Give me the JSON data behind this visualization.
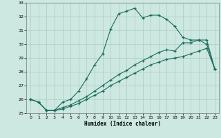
{
  "xlabel": "Humidex (Indice chaleur)",
  "bg_color": "#cce8e0",
  "grid_color": "#aaccc4",
  "line_color": "#1a6b5a",
  "xlim": [
    -0.5,
    23.5
  ],
  "ylim": [
    25,
    33
  ],
  "yticks": [
    25,
    26,
    27,
    28,
    29,
    30,
    31,
    32,
    33
  ],
  "xticks": [
    0,
    1,
    2,
    3,
    4,
    5,
    6,
    7,
    8,
    9,
    10,
    11,
    12,
    13,
    14,
    15,
    16,
    17,
    18,
    19,
    20,
    21,
    22,
    23
  ],
  "line1_x": [
    0,
    1,
    2,
    3,
    4,
    5,
    6,
    7,
    8,
    9,
    10,
    11,
    12,
    13,
    14,
    15,
    16,
    17,
    18,
    19,
    20,
    21,
    22,
    23
  ],
  "line1_y": [
    26.0,
    25.8,
    25.2,
    25.2,
    25.8,
    26.0,
    26.6,
    27.5,
    28.5,
    29.3,
    31.1,
    32.2,
    32.4,
    32.6,
    31.9,
    32.1,
    32.1,
    31.8,
    31.3,
    30.5,
    30.3,
    30.3,
    30.0,
    28.2
  ],
  "line2_x": [
    0,
    1,
    2,
    3,
    4,
    5,
    6,
    7,
    8,
    9,
    10,
    11,
    12,
    13,
    14,
    15,
    16,
    17,
    18,
    19,
    20,
    21,
    22,
    23
  ],
  "line2_y": [
    26.0,
    25.8,
    25.2,
    25.2,
    25.4,
    25.6,
    25.9,
    26.2,
    26.6,
    27.0,
    27.4,
    27.8,
    28.1,
    28.5,
    28.8,
    29.1,
    29.4,
    29.6,
    29.5,
    30.1,
    30.1,
    30.3,
    30.3,
    28.2
  ],
  "line3_x": [
    0,
    1,
    2,
    3,
    4,
    5,
    6,
    7,
    8,
    9,
    10,
    11,
    12,
    13,
    14,
    15,
    16,
    17,
    18,
    19,
    20,
    21,
    22,
    23
  ],
  "line3_y": [
    26.0,
    25.8,
    25.2,
    25.2,
    25.3,
    25.5,
    25.7,
    26.0,
    26.3,
    26.6,
    27.0,
    27.3,
    27.6,
    27.9,
    28.2,
    28.5,
    28.7,
    28.9,
    29.0,
    29.1,
    29.3,
    29.5,
    29.7,
    28.2
  ]
}
